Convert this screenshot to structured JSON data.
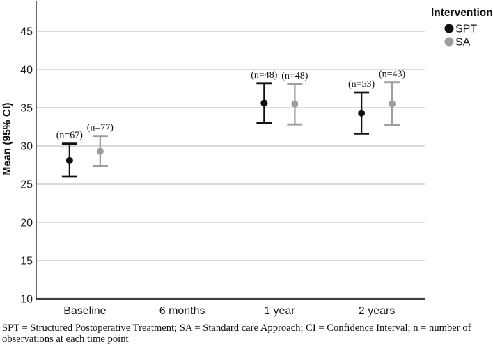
{
  "chart_data": {
    "type": "errorbar",
    "ylabel": "Mean (95% CI)",
    "categories": [
      "Baseline",
      "6 months",
      "1 year",
      "2 years"
    ],
    "ylim": [
      10,
      49
    ],
    "yticks": [
      10,
      15,
      20,
      25,
      30,
      35,
      40,
      45
    ],
    "gridlines": [
      15,
      20,
      25,
      30,
      35,
      40,
      45
    ],
    "grid_on": true,
    "legend_title": "Intervention",
    "legend_position": "top-right",
    "annotation_note": "n shown above each CI as (n=value)",
    "series": [
      {
        "name": "SPT",
        "color": "#111111",
        "points": [
          {
            "category": "Baseline",
            "mean": 28.1,
            "ci_low": 26.0,
            "ci_high": 30.3,
            "n": 67
          },
          {
            "category": "1 year",
            "mean": 35.6,
            "ci_low": 33.0,
            "ci_high": 38.2,
            "n": 48
          },
          {
            "category": "2 years",
            "mean": 34.3,
            "ci_low": 31.6,
            "ci_high": 37.0,
            "n": 53
          }
        ]
      },
      {
        "name": "SA",
        "color": "#9e9e9e",
        "points": [
          {
            "category": "Baseline",
            "mean": 29.3,
            "ci_low": 27.4,
            "ci_high": 31.3,
            "n": 77
          },
          {
            "category": "1 year",
            "mean": 35.5,
            "ci_low": 32.8,
            "ci_high": 38.1,
            "n": 48
          },
          {
            "category": "2 years",
            "mean": 35.5,
            "ci_low": 32.7,
            "ci_high": 38.3,
            "n": 43
          }
        ]
      }
    ]
  },
  "footer": {
    "text": "SPT = Structured Postoperative Treatment; SA = Standard care Approach; CI = Confidence Interval; n = number of observations at each time point"
  },
  "colors": {
    "grid": "#c8c8c8",
    "axis": "#404040",
    "text": "#1a1a1a",
    "background": "#ffffff"
  }
}
